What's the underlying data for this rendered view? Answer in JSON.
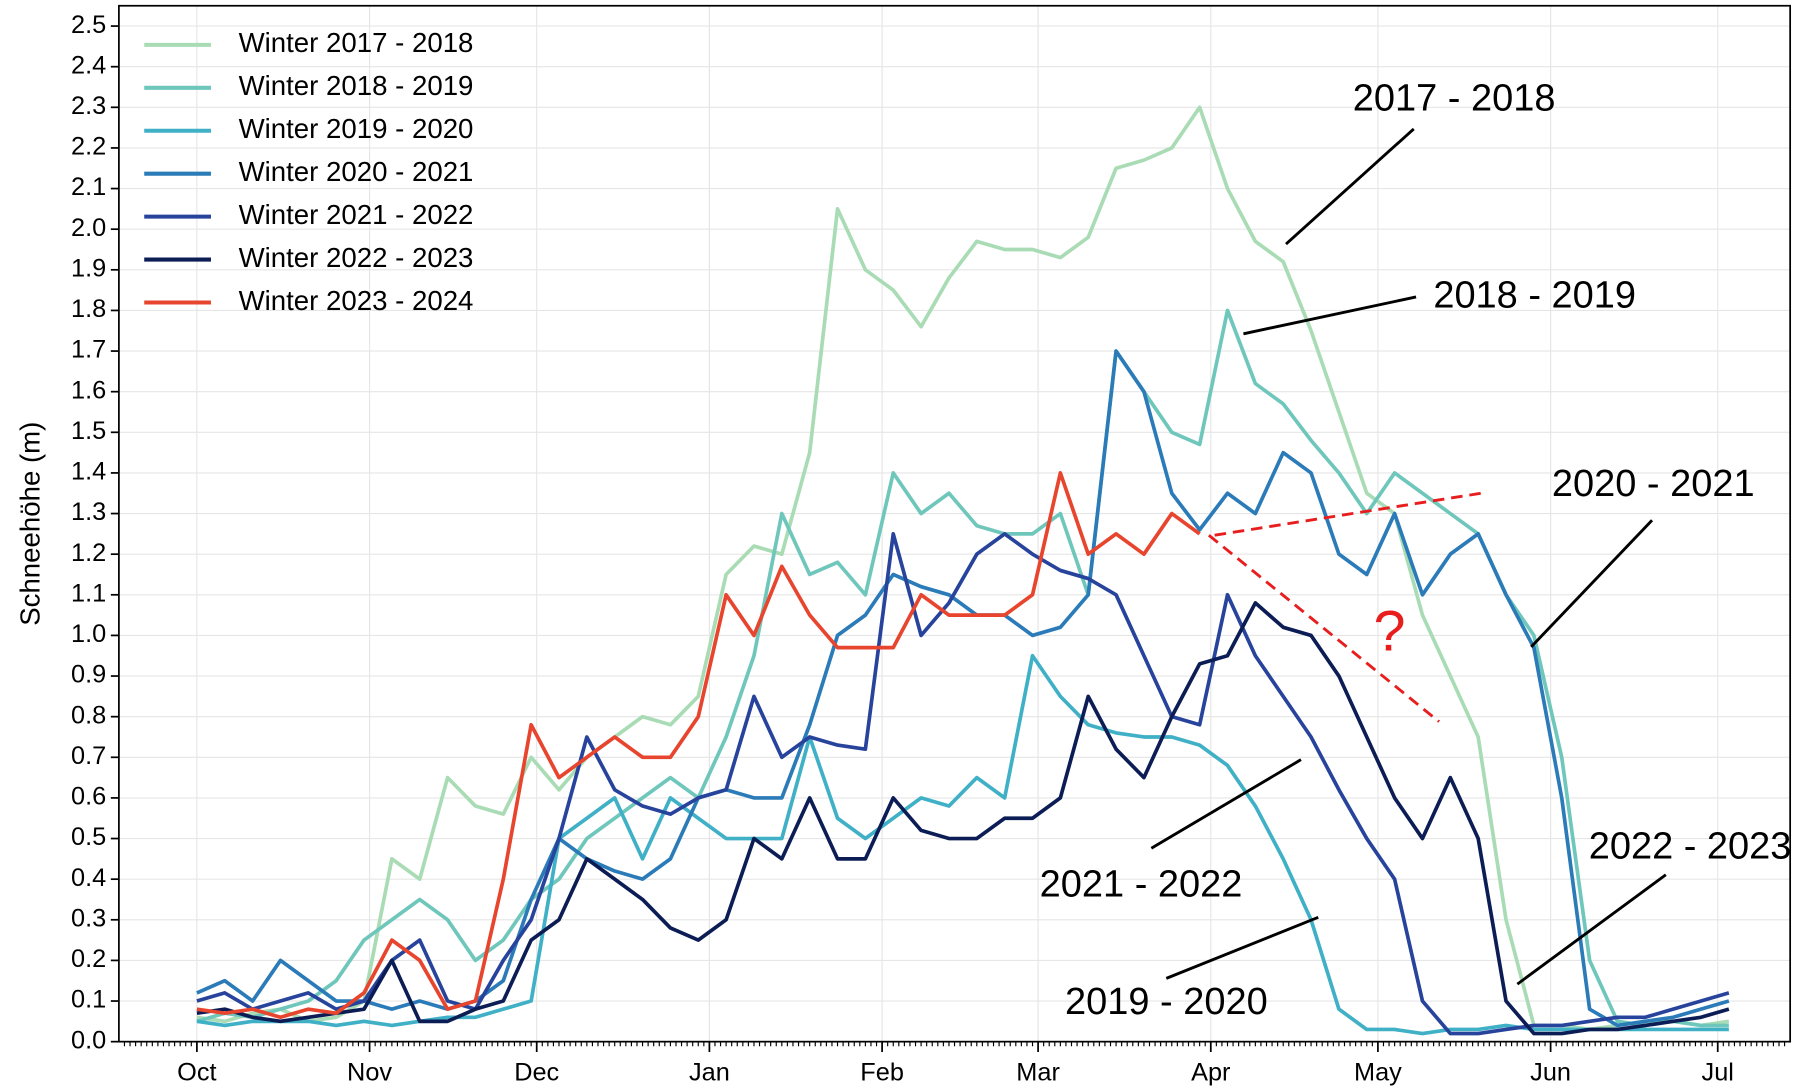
{
  "chart_data": {
    "type": "line",
    "ylabel": "Schneehöhe (m)",
    "x": [
      0,
      5,
      10,
      15,
      20,
      25,
      30,
      35,
      40,
      45,
      50,
      55,
      60,
      65,
      70,
      75,
      80,
      85,
      90,
      95,
      100,
      105,
      110,
      115,
      120,
      125,
      130,
      135,
      140,
      145,
      150,
      155,
      160,
      165,
      170,
      175,
      180,
      185,
      190,
      195,
      200,
      205,
      210,
      215,
      220,
      225,
      230,
      235,
      240,
      245,
      250,
      255,
      260,
      265,
      270,
      275
    ],
    "xlim": [
      -14,
      286
    ],
    "xticks": [
      {
        "value": 0,
        "label": "Oct"
      },
      {
        "value": 31,
        "label": "Nov"
      },
      {
        "value": 61,
        "label": "Dec"
      },
      {
        "value": 92,
        "label": "Jan"
      },
      {
        "value": 123,
        "label": "Feb"
      },
      {
        "value": 151,
        "label": "Mar"
      },
      {
        "value": 182,
        "label": "Apr"
      },
      {
        "value": 212,
        "label": "May"
      },
      {
        "value": 243,
        "label": "Jun"
      },
      {
        "value": 273,
        "label": "Jul"
      }
    ],
    "ylim": [
      0,
      2.55
    ],
    "yticks": [
      {
        "value": 0,
        "label": "0.0"
      },
      0.1,
      0.2,
      0.3,
      0.4,
      0.5,
      0.6,
      0.7,
      0.8,
      0.9,
      {
        "value": 1,
        "label": "1.0"
      },
      1.1,
      1.2,
      1.3,
      1.4,
      1.5,
      1.6,
      1.7,
      1.8,
      1.9,
      {
        "value": 2,
        "label": "2.0"
      },
      2.1,
      2.2,
      2.3,
      2.4,
      2.5
    ],
    "grid": true,
    "legend": "upper left",
    "series": [
      {
        "name": "Winter 2017 - 2018",
        "color": "#a9dcb5",
        "values": [
          0.06,
          0.05,
          0.07,
          0.08,
          0.05,
          0.06,
          0.1,
          0.45,
          0.4,
          0.65,
          0.58,
          0.56,
          0.7,
          0.62,
          0.7,
          0.75,
          0.8,
          0.78,
          0.85,
          1.15,
          1.22,
          1.2,
          1.45,
          2.05,
          1.9,
          1.85,
          1.76,
          1.88,
          1.97,
          1.95,
          1.95,
          1.93,
          1.98,
          2.15,
          2.17,
          2.2,
          2.3,
          2.1,
          1.97,
          1.92,
          1.75,
          1.55,
          1.35,
          1.3,
          1.05,
          0.9,
          0.75,
          0.3,
          0.04,
          0.04,
          0.03,
          0.04,
          0.05,
          0.05,
          0.04,
          0.05
        ]
      },
      {
        "name": "Winter 2018 - 2019",
        "color": "#6fc7bb",
        "values": [
          0.05,
          0.07,
          0.06,
          0.08,
          0.1,
          0.15,
          0.25,
          0.3,
          0.35,
          0.3,
          0.2,
          0.25,
          0.35,
          0.4,
          0.5,
          0.55,
          0.6,
          0.65,
          0.6,
          0.75,
          0.95,
          1.3,
          1.15,
          1.18,
          1.1,
          1.4,
          1.3,
          1.35,
          1.27,
          1.25,
          1.25,
          1.3,
          1.1,
          1.7,
          1.6,
          1.5,
          1.47,
          1.8,
          1.62,
          1.57,
          1.48,
          1.4,
          1.3,
          1.4,
          1.35,
          1.3,
          1.25,
          1.1,
          1.0,
          0.7,
          0.2,
          0.05,
          0.04,
          0.05,
          0.04,
          0.04
        ]
      },
      {
        "name": "Winter 2019 - 2020",
        "color": "#3fb0c6",
        "values": [
          0.05,
          0.04,
          0.05,
          0.05,
          0.05,
          0.04,
          0.05,
          0.04,
          0.05,
          0.06,
          0.06,
          0.08,
          0.1,
          0.5,
          0.55,
          0.6,
          0.45,
          0.6,
          0.55,
          0.5,
          0.5,
          0.5,
          0.75,
          0.55,
          0.5,
          0.55,
          0.6,
          0.58,
          0.65,
          0.6,
          0.95,
          0.85,
          0.78,
          0.76,
          0.75,
          0.75,
          0.73,
          0.68,
          0.58,
          0.45,
          0.3,
          0.08,
          0.03,
          0.03,
          0.02,
          0.03,
          0.03,
          0.04,
          0.03,
          0.03,
          0.03,
          0.03,
          0.03,
          0.03,
          0.03,
          0.03
        ]
      },
      {
        "name": "Winter 2020 - 2021",
        "color": "#2b7bb9",
        "values": [
          0.12,
          0.15,
          0.1,
          0.2,
          0.15,
          0.1,
          0.1,
          0.08,
          0.1,
          0.08,
          0.1,
          0.15,
          0.35,
          0.5,
          0.45,
          0.42,
          0.4,
          0.45,
          0.6,
          0.62,
          0.6,
          0.6,
          0.78,
          1.0,
          1.05,
          1.15,
          1.12,
          1.1,
          1.05,
          1.05,
          1.0,
          1.02,
          1.1,
          1.7,
          1.6,
          1.35,
          1.26,
          1.35,
          1.3,
          1.45,
          1.4,
          1.2,
          1.15,
          1.3,
          1.1,
          1.2,
          1.25,
          1.1,
          0.97,
          0.6,
          0.08,
          0.04,
          0.05,
          0.06,
          0.08,
          0.1
        ]
      },
      {
        "name": "Winter 2021 - 2022",
        "color": "#27439b",
        "values": [
          0.1,
          0.12,
          0.08,
          0.1,
          0.12,
          0.08,
          0.1,
          0.2,
          0.25,
          0.1,
          0.08,
          0.2,
          0.3,
          0.5,
          0.75,
          0.62,
          0.58,
          0.56,
          0.6,
          0.62,
          0.85,
          0.7,
          0.75,
          0.73,
          0.72,
          1.25,
          1.0,
          1.08,
          1.2,
          1.25,
          1.2,
          1.16,
          1.14,
          1.1,
          0.95,
          0.8,
          0.78,
          1.1,
          0.95,
          0.85,
          0.75,
          0.62,
          0.5,
          0.4,
          0.1,
          0.02,
          0.02,
          0.03,
          0.04,
          0.04,
          0.05,
          0.06,
          0.06,
          0.08,
          0.1,
          0.12
        ]
      },
      {
        "name": "Winter 2022 - 2023",
        "color": "#0c1d55",
        "values": [
          0.07,
          0.08,
          0.06,
          0.05,
          0.06,
          0.07,
          0.08,
          0.2,
          0.05,
          0.05,
          0.08,
          0.1,
          0.25,
          0.3,
          0.45,
          0.4,
          0.35,
          0.28,
          0.25,
          0.3,
          0.5,
          0.45,
          0.6,
          0.45,
          0.45,
          0.6,
          0.52,
          0.5,
          0.5,
          0.55,
          0.55,
          0.6,
          0.85,
          0.72,
          0.65,
          0.8,
          0.93,
          0.95,
          1.08,
          1.02,
          1.0,
          0.9,
          0.75,
          0.6,
          0.5,
          0.65,
          0.5,
          0.1,
          0.02,
          0.02,
          0.03,
          0.03,
          0.04,
          0.05,
          0.06,
          0.08
        ]
      },
      {
        "name": "Winter 2023 - 2024",
        "color": "#e8452f",
        "values": [
          0.08,
          0.07,
          0.08,
          0.06,
          0.08,
          0.07,
          0.12,
          0.25,
          0.2,
          0.08,
          0.1,
          0.4,
          0.78,
          0.65,
          0.7,
          0.75,
          0.7,
          0.7,
          0.8,
          1.1,
          1.0,
          1.17,
          1.05,
          0.97,
          0.97,
          0.97,
          1.1,
          1.05,
          1.05,
          1.05,
          1.1,
          1.4,
          1.2,
          1.25,
          1.2,
          1.3,
          1.25,
          null,
          null,
          null,
          null,
          null,
          null,
          null,
          null,
          null,
          null,
          null,
          null,
          null,
          null,
          null,
          null,
          null,
          null,
          null
        ]
      }
    ],
    "annotations": [
      "2017 - 2018",
      "2018 - 2019",
      "2020 - 2021",
      "2022 - 2023",
      "2021 - 2022",
      "2019 - 2020",
      "?"
    ]
  }
}
